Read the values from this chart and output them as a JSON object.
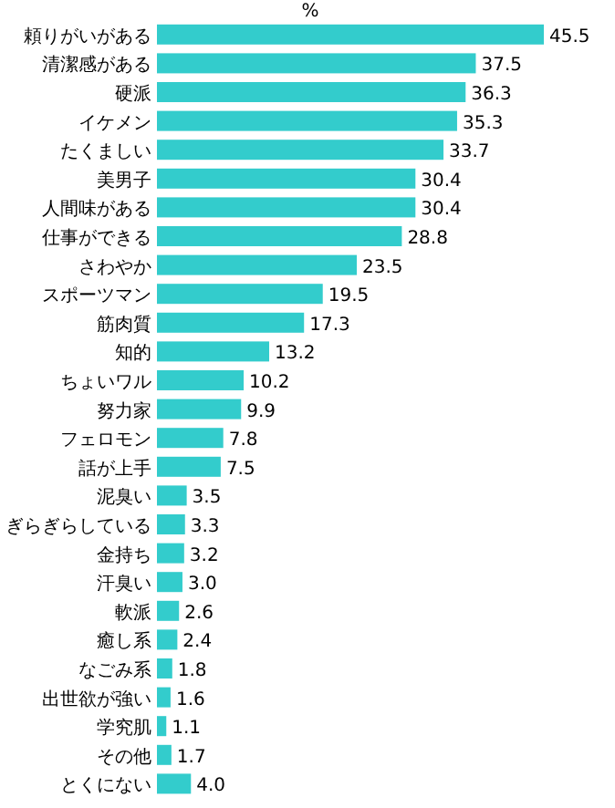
{
  "chart_data": {
    "type": "bar",
    "orientation": "horizontal",
    "xlabel": "%",
    "color": "#33cccc",
    "value_labels": [
      "45.5",
      "37.5",
      "36.3",
      "35.3",
      "33.7",
      "30.4",
      "30.4",
      "28.8",
      "23.5",
      "19.5",
      "17.3",
      "13.2",
      "10.2",
      "9.9",
      "7.8",
      "7.5",
      "3.5",
      "3.3",
      "3.2",
      "3.0",
      "2.6",
      "2.4",
      "1.8",
      "1.6",
      "1.1",
      "1.7",
      "4.0"
    ],
    "categories": [
      "頼りがいがある",
      "清潔感がある",
      "硬派",
      "イケメン",
      "たくましい",
      "美男子",
      "人間味がある",
      "仕事ができる",
      "さわやか",
      "スポーツマン",
      "筋肉質",
      "知的",
      "ちょいワル",
      "努力家",
      "フェロモン",
      "話が上手",
      "泥臭い",
      "ぎらぎらしている",
      "金持ち",
      "汗臭い",
      "軟派",
      "癒し系",
      "なごみ系",
      "出世欲が強い",
      "学究肌",
      "その他",
      "とくにない"
    ],
    "values": [
      45.5,
      37.5,
      36.3,
      35.3,
      33.7,
      30.4,
      30.4,
      28.8,
      23.5,
      19.5,
      17.3,
      13.2,
      10.2,
      9.9,
      7.8,
      7.5,
      3.5,
      3.3,
      3.2,
      3.0,
      2.6,
      2.4,
      1.8,
      1.6,
      1.1,
      1.7,
      4.0
    ]
  }
}
